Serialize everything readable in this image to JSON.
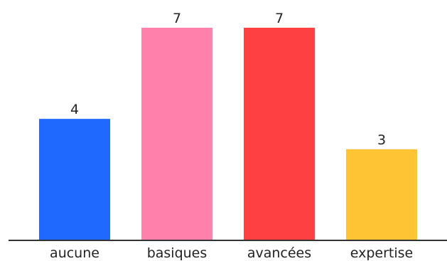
{
  "chart_data": {
    "type": "bar",
    "title": "",
    "xlabel": "",
    "ylabel": "",
    "categories": [
      "aucune",
      "basiques",
      "avancées",
      "expertise"
    ],
    "values": [
      4,
      7,
      7,
      3
    ],
    "value_labels": [
      "4",
      "7",
      "7",
      "3"
    ],
    "colors": [
      "#1f69ff",
      "#ff80aa",
      "#ff4040",
      "#ffc433"
    ],
    "ylim": [
      0,
      7
    ],
    "grid": false,
    "legend": "none",
    "baseline_color": "#333333"
  }
}
